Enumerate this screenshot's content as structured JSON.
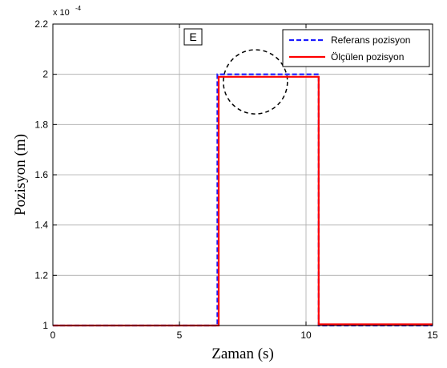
{
  "chart_data": {
    "type": "line",
    "xlabel": "Zaman (s)",
    "ylabel": "Pozisyon (m)",
    "xlim": [
      0,
      15
    ],
    "ylim": [
      1.0,
      2.2
    ],
    "y_exponent_label": "x 10",
    "y_exponent_power": "-4",
    "xticks": [
      0,
      5,
      10,
      15
    ],
    "xtick_labels": [
      "0",
      "5",
      "10",
      "15"
    ],
    "yticks": [
      1.0,
      1.2,
      1.4,
      1.6,
      1.8,
      2.0,
      2.2
    ],
    "ytick_labels": [
      "1",
      "1.2",
      "1.4",
      "1.6",
      "1.8",
      "2",
      "2.2"
    ],
    "grid": true,
    "legend_position": "top-right",
    "annotation_box_label": "E",
    "annotation_circle_center": [
      8.0,
      1.97
    ],
    "series": [
      {
        "name": "Referans pozisyon",
        "color": "#1a1aff",
        "style": "dashed",
        "x": [
          0,
          6.5,
          6.5,
          10.5,
          10.5,
          15
        ],
        "y": [
          1.0,
          1.0,
          2.0,
          2.0,
          1.0,
          1.0
        ]
      },
      {
        "name": "Ölçülen pozisyon",
        "color": "#ff0000",
        "style": "solid",
        "x": [
          0,
          6.55,
          6.55,
          10.5,
          10.5,
          15
        ],
        "y": [
          1.0,
          1.0,
          1.99,
          1.99,
          1.005,
          1.005
        ]
      }
    ]
  }
}
